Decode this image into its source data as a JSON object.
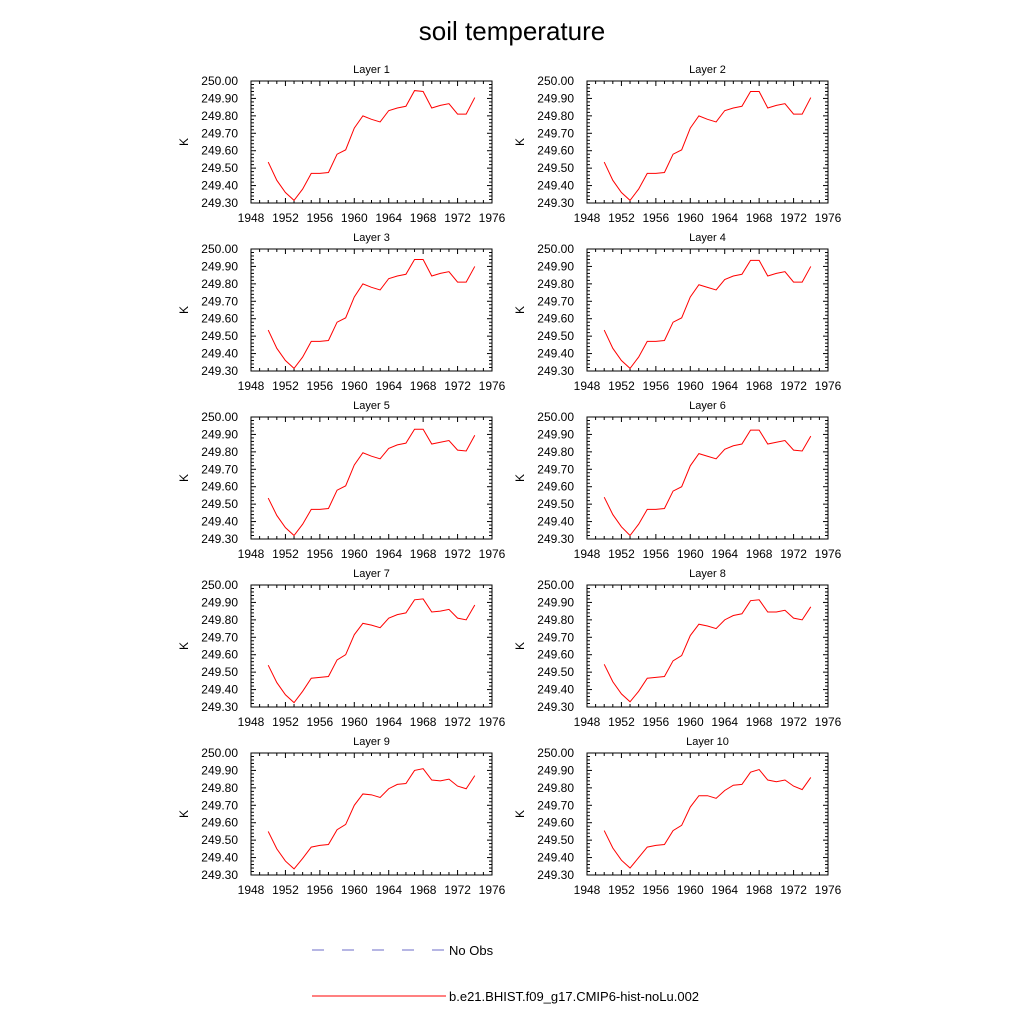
{
  "figure": {
    "title": "soil temperature"
  },
  "colors": {
    "model": "#ff0000",
    "obs": "#6e6ec8",
    "axis": "#000000"
  },
  "legend": {
    "placement": "bottom-center",
    "obs_label": "No Obs",
    "model_label": "b.e21.BHIST.f09_g17.CMIP6-hist-noLu.002"
  },
  "chart_data": [
    {
      "type": "line",
      "title": "Layer 1",
      "xlabel": "",
      "ylabel": "K",
      "xlim": [
        1948,
        1976
      ],
      "ylim": [
        249.3,
        250.0
      ],
      "xticks": [
        "1948",
        "1952",
        "1956",
        "1960",
        "1964",
        "1968",
        "1972",
        "1976"
      ],
      "yticks": [
        "249.30",
        "249.40",
        "249.50",
        "249.60",
        "249.70",
        "249.80",
        "249.90",
        "250.00"
      ],
      "x": [
        1950,
        1951,
        1952,
        1953,
        1954,
        1955,
        1956,
        1957,
        1958,
        1959,
        1960,
        1961,
        1962,
        1963,
        1964,
        1965,
        1966,
        1967,
        1968,
        1969,
        1970,
        1971,
        1972,
        1973,
        1974
      ],
      "series": [
        {
          "name": "b.e21.BHIST.f09_g17.CMIP6-hist-noLu.002",
          "values": [
            249.535,
            249.43,
            249.36,
            249.315,
            249.38,
            249.47,
            249.47,
            249.475,
            249.58,
            249.605,
            249.73,
            249.8,
            249.78,
            249.765,
            249.83,
            249.845,
            249.855,
            249.945,
            249.94,
            249.845,
            249.86,
            249.87,
            249.81,
            249.81,
            249.905
          ]
        }
      ]
    },
    {
      "type": "line",
      "title": "Layer 2",
      "xlabel": "",
      "ylabel": "K",
      "xlim": [
        1948,
        1976
      ],
      "ylim": [
        249.3,
        250.0
      ],
      "xticks": [
        "1948",
        "1952",
        "1956",
        "1960",
        "1964",
        "1968",
        "1972",
        "1976"
      ],
      "yticks": [
        "249.30",
        "249.40",
        "249.50",
        "249.60",
        "249.70",
        "249.80",
        "249.90",
        "250.00"
      ],
      "x": [
        1950,
        1951,
        1952,
        1953,
        1954,
        1955,
        1956,
        1957,
        1958,
        1959,
        1960,
        1961,
        1962,
        1963,
        1964,
        1965,
        1966,
        1967,
        1968,
        1969,
        1970,
        1971,
        1972,
        1973,
        1974
      ],
      "series": [
        {
          "name": "b.e21.BHIST.f09_g17.CMIP6-hist-noLu.002",
          "values": [
            249.535,
            249.43,
            249.36,
            249.315,
            249.38,
            249.47,
            249.47,
            249.475,
            249.58,
            249.605,
            249.73,
            249.8,
            249.78,
            249.765,
            249.83,
            249.845,
            249.855,
            249.94,
            249.94,
            249.845,
            249.86,
            249.87,
            249.81,
            249.81,
            249.905
          ]
        }
      ]
    },
    {
      "type": "line",
      "title": "Layer 3",
      "xlabel": "",
      "ylabel": "K",
      "xlim": [
        1948,
        1976
      ],
      "ylim": [
        249.3,
        250.0
      ],
      "xticks": [
        "1948",
        "1952",
        "1956",
        "1960",
        "1964",
        "1968",
        "1972",
        "1976"
      ],
      "yticks": [
        "249.30",
        "249.40",
        "249.50",
        "249.60",
        "249.70",
        "249.80",
        "249.90",
        "250.00"
      ],
      "x": [
        1950,
        1951,
        1952,
        1953,
        1954,
        1955,
        1956,
        1957,
        1958,
        1959,
        1960,
        1961,
        1962,
        1963,
        1964,
        1965,
        1966,
        1967,
        1968,
        1969,
        1970,
        1971,
        1972,
        1973,
        1974
      ],
      "series": [
        {
          "name": "b.e21.BHIST.f09_g17.CMIP6-hist-noLu.002",
          "values": [
            249.535,
            249.43,
            249.36,
            249.315,
            249.38,
            249.47,
            249.47,
            249.475,
            249.58,
            249.605,
            249.725,
            249.8,
            249.78,
            249.765,
            249.83,
            249.845,
            249.855,
            249.94,
            249.94,
            249.845,
            249.86,
            249.87,
            249.81,
            249.81,
            249.9
          ]
        }
      ]
    },
    {
      "type": "line",
      "title": "Layer 4",
      "xlabel": "",
      "ylabel": "K",
      "xlim": [
        1948,
        1976
      ],
      "ylim": [
        249.3,
        250.0
      ],
      "xticks": [
        "1948",
        "1952",
        "1956",
        "1960",
        "1964",
        "1968",
        "1972",
        "1976"
      ],
      "yticks": [
        "249.30",
        "249.40",
        "249.50",
        "249.60",
        "249.70",
        "249.80",
        "249.90",
        "250.00"
      ],
      "x": [
        1950,
        1951,
        1952,
        1953,
        1954,
        1955,
        1956,
        1957,
        1958,
        1959,
        1960,
        1961,
        1962,
        1963,
        1964,
        1965,
        1966,
        1967,
        1968,
        1969,
        1970,
        1971,
        1972,
        1973,
        1974
      ],
      "series": [
        {
          "name": "b.e21.BHIST.f09_g17.CMIP6-hist-noLu.002",
          "values": [
            249.535,
            249.43,
            249.36,
            249.315,
            249.38,
            249.47,
            249.47,
            249.475,
            249.58,
            249.605,
            249.725,
            249.795,
            249.78,
            249.765,
            249.825,
            249.845,
            249.855,
            249.935,
            249.935,
            249.845,
            249.86,
            249.87,
            249.81,
            249.81,
            249.9
          ]
        }
      ]
    },
    {
      "type": "line",
      "title": "Layer 5",
      "xlabel": "",
      "ylabel": "K",
      "xlim": [
        1948,
        1976
      ],
      "ylim": [
        249.3,
        250.0
      ],
      "xticks": [
        "1948",
        "1952",
        "1956",
        "1960",
        "1964",
        "1968",
        "1972",
        "1976"
      ],
      "yticks": [
        "249.30",
        "249.40",
        "249.50",
        "249.60",
        "249.70",
        "249.80",
        "249.90",
        "250.00"
      ],
      "x": [
        1950,
        1951,
        1952,
        1953,
        1954,
        1955,
        1956,
        1957,
        1958,
        1959,
        1960,
        1961,
        1962,
        1963,
        1964,
        1965,
        1966,
        1967,
        1968,
        1969,
        1970,
        1971,
        1972,
        1973,
        1974
      ],
      "series": [
        {
          "name": "b.e21.BHIST.f09_g17.CMIP6-hist-noLu.002",
          "values": [
            249.535,
            249.435,
            249.365,
            249.32,
            249.385,
            249.47,
            249.47,
            249.475,
            249.58,
            249.605,
            249.725,
            249.795,
            249.775,
            249.76,
            249.82,
            249.84,
            249.85,
            249.93,
            249.93,
            249.845,
            249.855,
            249.865,
            249.81,
            249.805,
            249.895
          ]
        }
      ]
    },
    {
      "type": "line",
      "title": "Layer 6",
      "xlabel": "",
      "ylabel": "K",
      "xlim": [
        1948,
        1976
      ],
      "ylim": [
        249.3,
        250.0
      ],
      "xticks": [
        "1948",
        "1952",
        "1956",
        "1960",
        "1964",
        "1968",
        "1972",
        "1976"
      ],
      "yticks": [
        "249.30",
        "249.40",
        "249.50",
        "249.60",
        "249.70",
        "249.80",
        "249.90",
        "250.00"
      ],
      "x": [
        1950,
        1951,
        1952,
        1953,
        1954,
        1955,
        1956,
        1957,
        1958,
        1959,
        1960,
        1961,
        1962,
        1963,
        1964,
        1965,
        1966,
        1967,
        1968,
        1969,
        1970,
        1971,
        1972,
        1973,
        1974
      ],
      "series": [
        {
          "name": "b.e21.BHIST.f09_g17.CMIP6-hist-noLu.002",
          "values": [
            249.54,
            249.44,
            249.37,
            249.32,
            249.385,
            249.47,
            249.47,
            249.475,
            249.575,
            249.6,
            249.72,
            249.79,
            249.775,
            249.76,
            249.815,
            249.835,
            249.845,
            249.925,
            249.925,
            249.845,
            249.855,
            249.865,
            249.81,
            249.805,
            249.89
          ]
        }
      ]
    },
    {
      "type": "line",
      "title": "Layer 7",
      "xlabel": "",
      "ylabel": "K",
      "xlim": [
        1948,
        1976
      ],
      "ylim": [
        249.3,
        250.0
      ],
      "xticks": [
        "1948",
        "1952",
        "1956",
        "1960",
        "1964",
        "1968",
        "1972",
        "1976"
      ],
      "yticks": [
        "249.30",
        "249.40",
        "249.50",
        "249.60",
        "249.70",
        "249.80",
        "249.90",
        "250.00"
      ],
      "x": [
        1950,
        1951,
        1952,
        1953,
        1954,
        1955,
        1956,
        1957,
        1958,
        1959,
        1960,
        1961,
        1962,
        1963,
        1964,
        1965,
        1966,
        1967,
        1968,
        1969,
        1970,
        1971,
        1972,
        1973,
        1974
      ],
      "series": [
        {
          "name": "b.e21.BHIST.f09_g17.CMIP6-hist-noLu.002",
          "values": [
            249.54,
            249.44,
            249.37,
            249.325,
            249.39,
            249.465,
            249.47,
            249.475,
            249.57,
            249.6,
            249.715,
            249.78,
            249.77,
            249.755,
            249.81,
            249.83,
            249.84,
            249.915,
            249.92,
            249.845,
            249.85,
            249.86,
            249.81,
            249.8,
            249.885
          ]
        }
      ]
    },
    {
      "type": "line",
      "title": "Layer 8",
      "xlabel": "",
      "ylabel": "K",
      "xlim": [
        1948,
        1976
      ],
      "ylim": [
        249.3,
        250.0
      ],
      "xticks": [
        "1948",
        "1952",
        "1956",
        "1960",
        "1964",
        "1968",
        "1972",
        "1976"
      ],
      "yticks": [
        "249.30",
        "249.40",
        "249.50",
        "249.60",
        "249.70",
        "249.80",
        "249.90",
        "250.00"
      ],
      "x": [
        1950,
        1951,
        1952,
        1953,
        1954,
        1955,
        1956,
        1957,
        1958,
        1959,
        1960,
        1961,
        1962,
        1963,
        1964,
        1965,
        1966,
        1967,
        1968,
        1969,
        1970,
        1971,
        1972,
        1973,
        1974
      ],
      "series": [
        {
          "name": "b.e21.BHIST.f09_g17.CMIP6-hist-noLu.002",
          "values": [
            249.545,
            249.445,
            249.375,
            249.33,
            249.39,
            249.465,
            249.47,
            249.475,
            249.565,
            249.595,
            249.71,
            249.775,
            249.765,
            249.75,
            249.8,
            249.825,
            249.835,
            249.91,
            249.915,
            249.845,
            249.845,
            249.855,
            249.81,
            249.8,
            249.875
          ]
        }
      ]
    },
    {
      "type": "line",
      "title": "Layer 9",
      "xlabel": "",
      "ylabel": "K",
      "xlim": [
        1948,
        1976
      ],
      "ylim": [
        249.3,
        250.0
      ],
      "xticks": [
        "1948",
        "1952",
        "1956",
        "1960",
        "1964",
        "1968",
        "1972",
        "1976"
      ],
      "yticks": [
        "249.30",
        "249.40",
        "249.50",
        "249.60",
        "249.70",
        "249.80",
        "249.90",
        "250.00"
      ],
      "x": [
        1950,
        1951,
        1952,
        1953,
        1954,
        1955,
        1956,
        1957,
        1958,
        1959,
        1960,
        1961,
        1962,
        1963,
        1964,
        1965,
        1966,
        1967,
        1968,
        1969,
        1970,
        1971,
        1972,
        1973,
        1974
      ],
      "series": [
        {
          "name": "b.e21.BHIST.f09_g17.CMIP6-hist-noLu.002",
          "values": [
            249.55,
            249.45,
            249.38,
            249.335,
            249.395,
            249.46,
            249.47,
            249.475,
            249.56,
            249.59,
            249.7,
            249.765,
            249.76,
            249.745,
            249.795,
            249.82,
            249.825,
            249.9,
            249.91,
            249.845,
            249.84,
            249.85,
            249.81,
            249.795,
            249.87
          ]
        }
      ]
    },
    {
      "type": "line",
      "title": "Layer 10",
      "xlabel": "",
      "ylabel": "K",
      "xlim": [
        1948,
        1976
      ],
      "ylim": [
        249.3,
        250.0
      ],
      "xticks": [
        "1948",
        "1952",
        "1956",
        "1960",
        "1964",
        "1968",
        "1972",
        "1976"
      ],
      "yticks": [
        "249.30",
        "249.40",
        "249.50",
        "249.60",
        "249.70",
        "249.80",
        "249.90",
        "250.00"
      ],
      "x": [
        1950,
        1951,
        1952,
        1953,
        1954,
        1955,
        1956,
        1957,
        1958,
        1959,
        1960,
        1961,
        1962,
        1963,
        1964,
        1965,
        1966,
        1967,
        1968,
        1969,
        1970,
        1971,
        1972,
        1973,
        1974
      ],
      "series": [
        {
          "name": "b.e21.BHIST.f09_g17.CMIP6-hist-noLu.002",
          "values": [
            249.555,
            249.455,
            249.385,
            249.34,
            249.4,
            249.46,
            249.47,
            249.475,
            249.555,
            249.585,
            249.69,
            249.755,
            249.755,
            249.74,
            249.785,
            249.815,
            249.82,
            249.89,
            249.905,
            249.845,
            249.835,
            249.845,
            249.81,
            249.79,
            249.86
          ]
        }
      ]
    }
  ]
}
